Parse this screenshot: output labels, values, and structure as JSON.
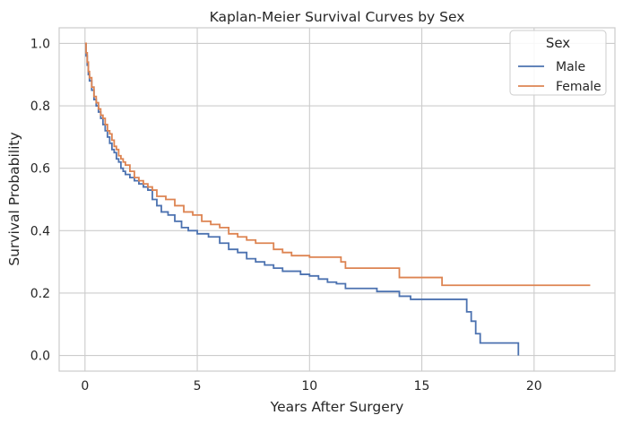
{
  "chart_data": {
    "type": "line",
    "step": true,
    "title": "Kaplan-Meier Survival Curves by Sex",
    "xlabel": "Years After Surgery",
    "ylabel": "Survival Probability",
    "xlim": [
      -1.15,
      23.6
    ],
    "ylim": [
      -0.05,
      1.05
    ],
    "xticks": [
      0,
      5,
      10,
      15,
      20
    ],
    "yticks": [
      0.0,
      0.2,
      0.4,
      0.6,
      0.8,
      1.0
    ],
    "xtick_labels": [
      "0",
      "5",
      "10",
      "15",
      "20"
    ],
    "ytick_labels": [
      "0.0",
      "0.2",
      "0.4",
      "0.6",
      "0.8",
      "1.0"
    ],
    "grid": true,
    "legend": {
      "title": "Sex",
      "placement": "top-right"
    },
    "series": [
      {
        "name": "Male",
        "color": "#4c72b0",
        "x": [
          0,
          0.05,
          0.1,
          0.15,
          0.2,
          0.3,
          0.4,
          0.5,
          0.6,
          0.7,
          0.8,
          0.9,
          1.0,
          1.1,
          1.2,
          1.3,
          1.4,
          1.5,
          1.6,
          1.7,
          1.8,
          2.0,
          2.2,
          2.4,
          2.6,
          2.8,
          3.0,
          3.2,
          3.4,
          3.7,
          4.0,
          4.3,
          4.6,
          5.0,
          5.5,
          6.0,
          6.4,
          6.8,
          7.2,
          7.6,
          8.0,
          8.4,
          8.8,
          9.2,
          9.6,
          10.0,
          10.4,
          10.8,
          11.2,
          11.6,
          12.0,
          13.0,
          14.0,
          14.5,
          15.0,
          16.0,
          17.0,
          17.2,
          17.4,
          17.6,
          17.8,
          19.3
        ],
        "y": [
          1.0,
          0.96,
          0.93,
          0.9,
          0.88,
          0.85,
          0.82,
          0.8,
          0.78,
          0.76,
          0.74,
          0.72,
          0.7,
          0.68,
          0.66,
          0.65,
          0.63,
          0.62,
          0.6,
          0.59,
          0.58,
          0.57,
          0.56,
          0.55,
          0.54,
          0.53,
          0.5,
          0.48,
          0.46,
          0.45,
          0.43,
          0.41,
          0.4,
          0.39,
          0.38,
          0.36,
          0.34,
          0.33,
          0.31,
          0.3,
          0.29,
          0.28,
          0.27,
          0.27,
          0.26,
          0.255,
          0.245,
          0.235,
          0.23,
          0.215,
          0.215,
          0.205,
          0.19,
          0.18,
          0.18,
          0.18,
          0.14,
          0.11,
          0.07,
          0.04,
          0.04,
          0.0
        ]
      },
      {
        "name": "Female",
        "color": "#dd8452",
        "x": [
          0,
          0.05,
          0.1,
          0.15,
          0.2,
          0.3,
          0.4,
          0.5,
          0.6,
          0.7,
          0.8,
          0.9,
          1.0,
          1.1,
          1.2,
          1.3,
          1.4,
          1.5,
          1.6,
          1.7,
          1.8,
          2.0,
          2.2,
          2.4,
          2.6,
          2.8,
          3.0,
          3.2,
          3.6,
          4.0,
          4.4,
          4.8,
          5.2,
          5.6,
          6.0,
          6.4,
          6.8,
          7.2,
          7.6,
          8.0,
          8.4,
          8.8,
          9.2,
          9.6,
          10.0,
          11.0,
          11.4,
          11.6,
          12.0,
          13.0,
          14.0,
          15.0,
          15.9,
          22.5
        ],
        "y": [
          1.0,
          0.97,
          0.94,
          0.91,
          0.89,
          0.86,
          0.83,
          0.81,
          0.79,
          0.77,
          0.76,
          0.74,
          0.72,
          0.71,
          0.69,
          0.67,
          0.66,
          0.64,
          0.63,
          0.62,
          0.61,
          0.59,
          0.57,
          0.56,
          0.55,
          0.54,
          0.53,
          0.51,
          0.5,
          0.48,
          0.46,
          0.45,
          0.43,
          0.42,
          0.41,
          0.39,
          0.38,
          0.37,
          0.36,
          0.36,
          0.34,
          0.33,
          0.32,
          0.32,
          0.315,
          0.315,
          0.3,
          0.28,
          0.28,
          0.28,
          0.25,
          0.25,
          0.225,
          0.225
        ]
      }
    ]
  }
}
